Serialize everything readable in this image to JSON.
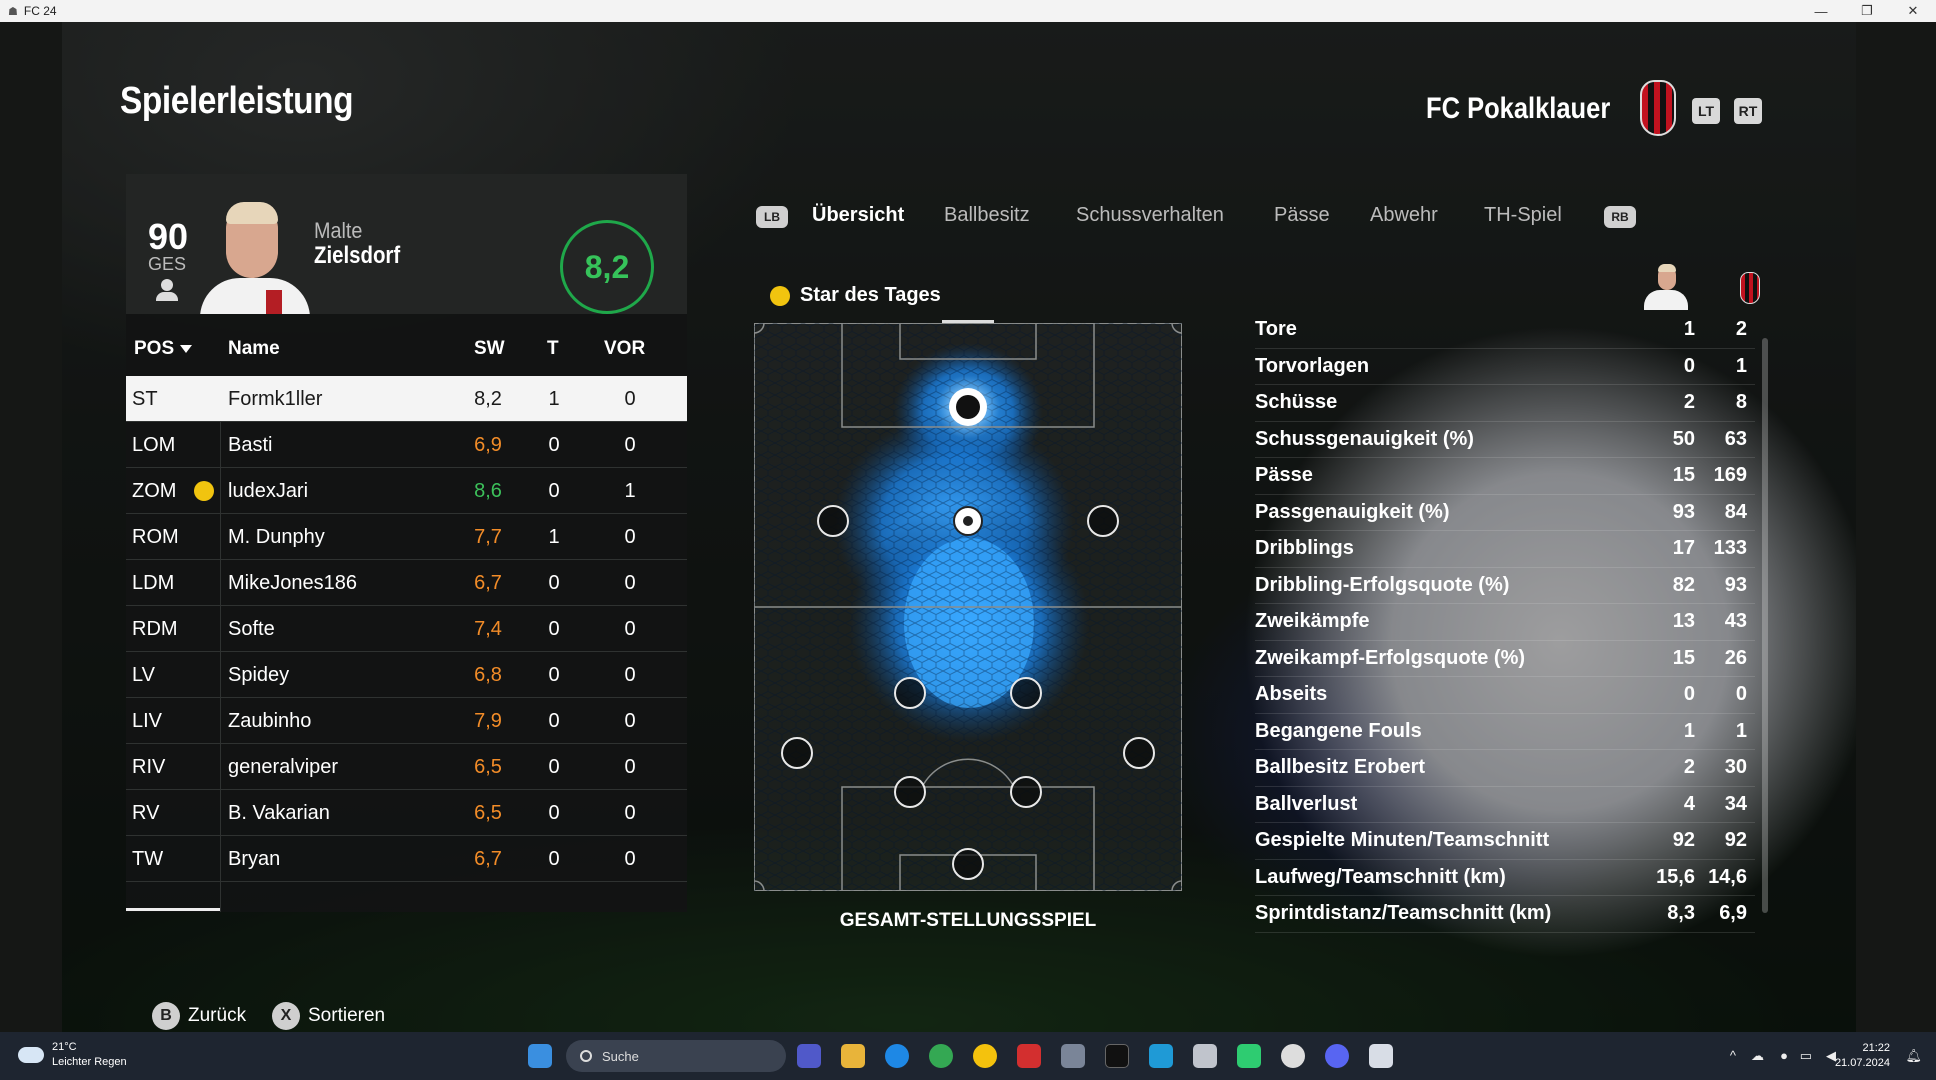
{
  "window": {
    "title": "FC 24",
    "controls": [
      "—",
      "❐",
      "✕"
    ]
  },
  "header": {
    "page_title": "Spielerleistung",
    "club_name": "FC Pokalklauer",
    "lt": "LT",
    "rt": "RT"
  },
  "player": {
    "overall": "90",
    "overall_label": "GES",
    "first_name": "Malte",
    "last_name": "Zielsdorf",
    "rating": "8,2"
  },
  "table": {
    "headers": {
      "pos": "POS",
      "name": "Name",
      "sw": "SW",
      "t": "T",
      "vor": "VOR"
    },
    "rows": [
      {
        "pos": "ST",
        "name": "Formk1ller",
        "sw": "8,2",
        "t": "1",
        "vor": "0"
      },
      {
        "pos": "LOM",
        "name": "Basti",
        "sw": "6,9",
        "t": "0",
        "vor": "0"
      },
      {
        "pos": "ZOM",
        "name": "ludexJari",
        "sw": "8,6",
        "t": "0",
        "vor": "1"
      },
      {
        "pos": "ROM",
        "name": "M. Dunphy",
        "sw": "7,7",
        "t": "1",
        "vor": "0"
      },
      {
        "pos": "LDM",
        "name": "MikeJones186",
        "sw": "6,7",
        "t": "0",
        "vor": "0"
      },
      {
        "pos": "RDM",
        "name": "Softe",
        "sw": "7,4",
        "t": "0",
        "vor": "0"
      },
      {
        "pos": "LV",
        "name": "Spidey",
        "sw": "6,8",
        "t": "0",
        "vor": "0"
      },
      {
        "pos": "LIV",
        "name": "Zaubinho",
        "sw": "7,9",
        "t": "0",
        "vor": "0"
      },
      {
        "pos": "RIV",
        "name": "generalviper",
        "sw": "6,5",
        "t": "0",
        "vor": "0"
      },
      {
        "pos": "RV",
        "name": "B. Vakarian",
        "sw": "6,5",
        "t": "0",
        "vor": "0"
      },
      {
        "pos": "TW",
        "name": "Bryan",
        "sw": "6,7",
        "t": "0",
        "vor": "0"
      }
    ]
  },
  "tabs": {
    "lb": "LB",
    "rb": "RB",
    "items": [
      "Übersicht",
      "Ballbesitz",
      "Schussverhalten",
      "Pässe",
      "Abwehr",
      "TH-Spiel"
    ],
    "active": "Übersicht"
  },
  "star_of_day": "Star des Tages",
  "pitch_label": "GESAMT-STELLUNGSSPIEL",
  "stats": [
    {
      "label": "Tore",
      "player": "1",
      "team": "2"
    },
    {
      "label": "Torvorlagen",
      "player": "0",
      "team": "1"
    },
    {
      "label": "Schüsse",
      "player": "2",
      "team": "8"
    },
    {
      "label": "Schussgenauigkeit (%)",
      "player": "50",
      "team": "63"
    },
    {
      "label": "Pässe",
      "player": "15",
      "team": "169"
    },
    {
      "label": "Passgenauigkeit (%)",
      "player": "93",
      "team": "84"
    },
    {
      "label": "Dribblings",
      "player": "17",
      "team": "133"
    },
    {
      "label": "Dribbling-Erfolgsquote (%)",
      "player": "82",
      "team": "93"
    },
    {
      "label": "Zweikämpfe",
      "player": "13",
      "team": "43"
    },
    {
      "label": "Zweikampf-Erfolgsquote (%)",
      "player": "15",
      "team": "26"
    },
    {
      "label": "Abseits",
      "player": "0",
      "team": "0"
    },
    {
      "label": "Begangene Fouls",
      "player": "1",
      "team": "1"
    },
    {
      "label": "Ballbesitz Erobert",
      "player": "2",
      "team": "30"
    },
    {
      "label": "Ballverlust",
      "player": "4",
      "team": "34"
    },
    {
      "label": "Gespielte Minuten/Teamschnitt",
      "player": "92",
      "team": "92"
    },
    {
      "label": "Laufweg/Teamschnitt (km)",
      "player": "15,6",
      "team": "14,6"
    },
    {
      "label": "Sprintdistanz/Teamschnitt (km)",
      "player": "8,3",
      "team": "6,9"
    }
  ],
  "hints": {
    "back_key": "B",
    "back": "Zurück",
    "sort_key": "X",
    "sort": "Sortieren"
  },
  "taskbar": {
    "temp": "21°C",
    "weather": "Leichter Regen",
    "search": "Suche",
    "time": "21:22",
    "date": "21.07.2024"
  },
  "colors": {
    "rating_green": "#36c35a",
    "rating_orange": "#f28c28",
    "heat_blue": "#1e90ff",
    "accent_red": "#c1121f"
  }
}
